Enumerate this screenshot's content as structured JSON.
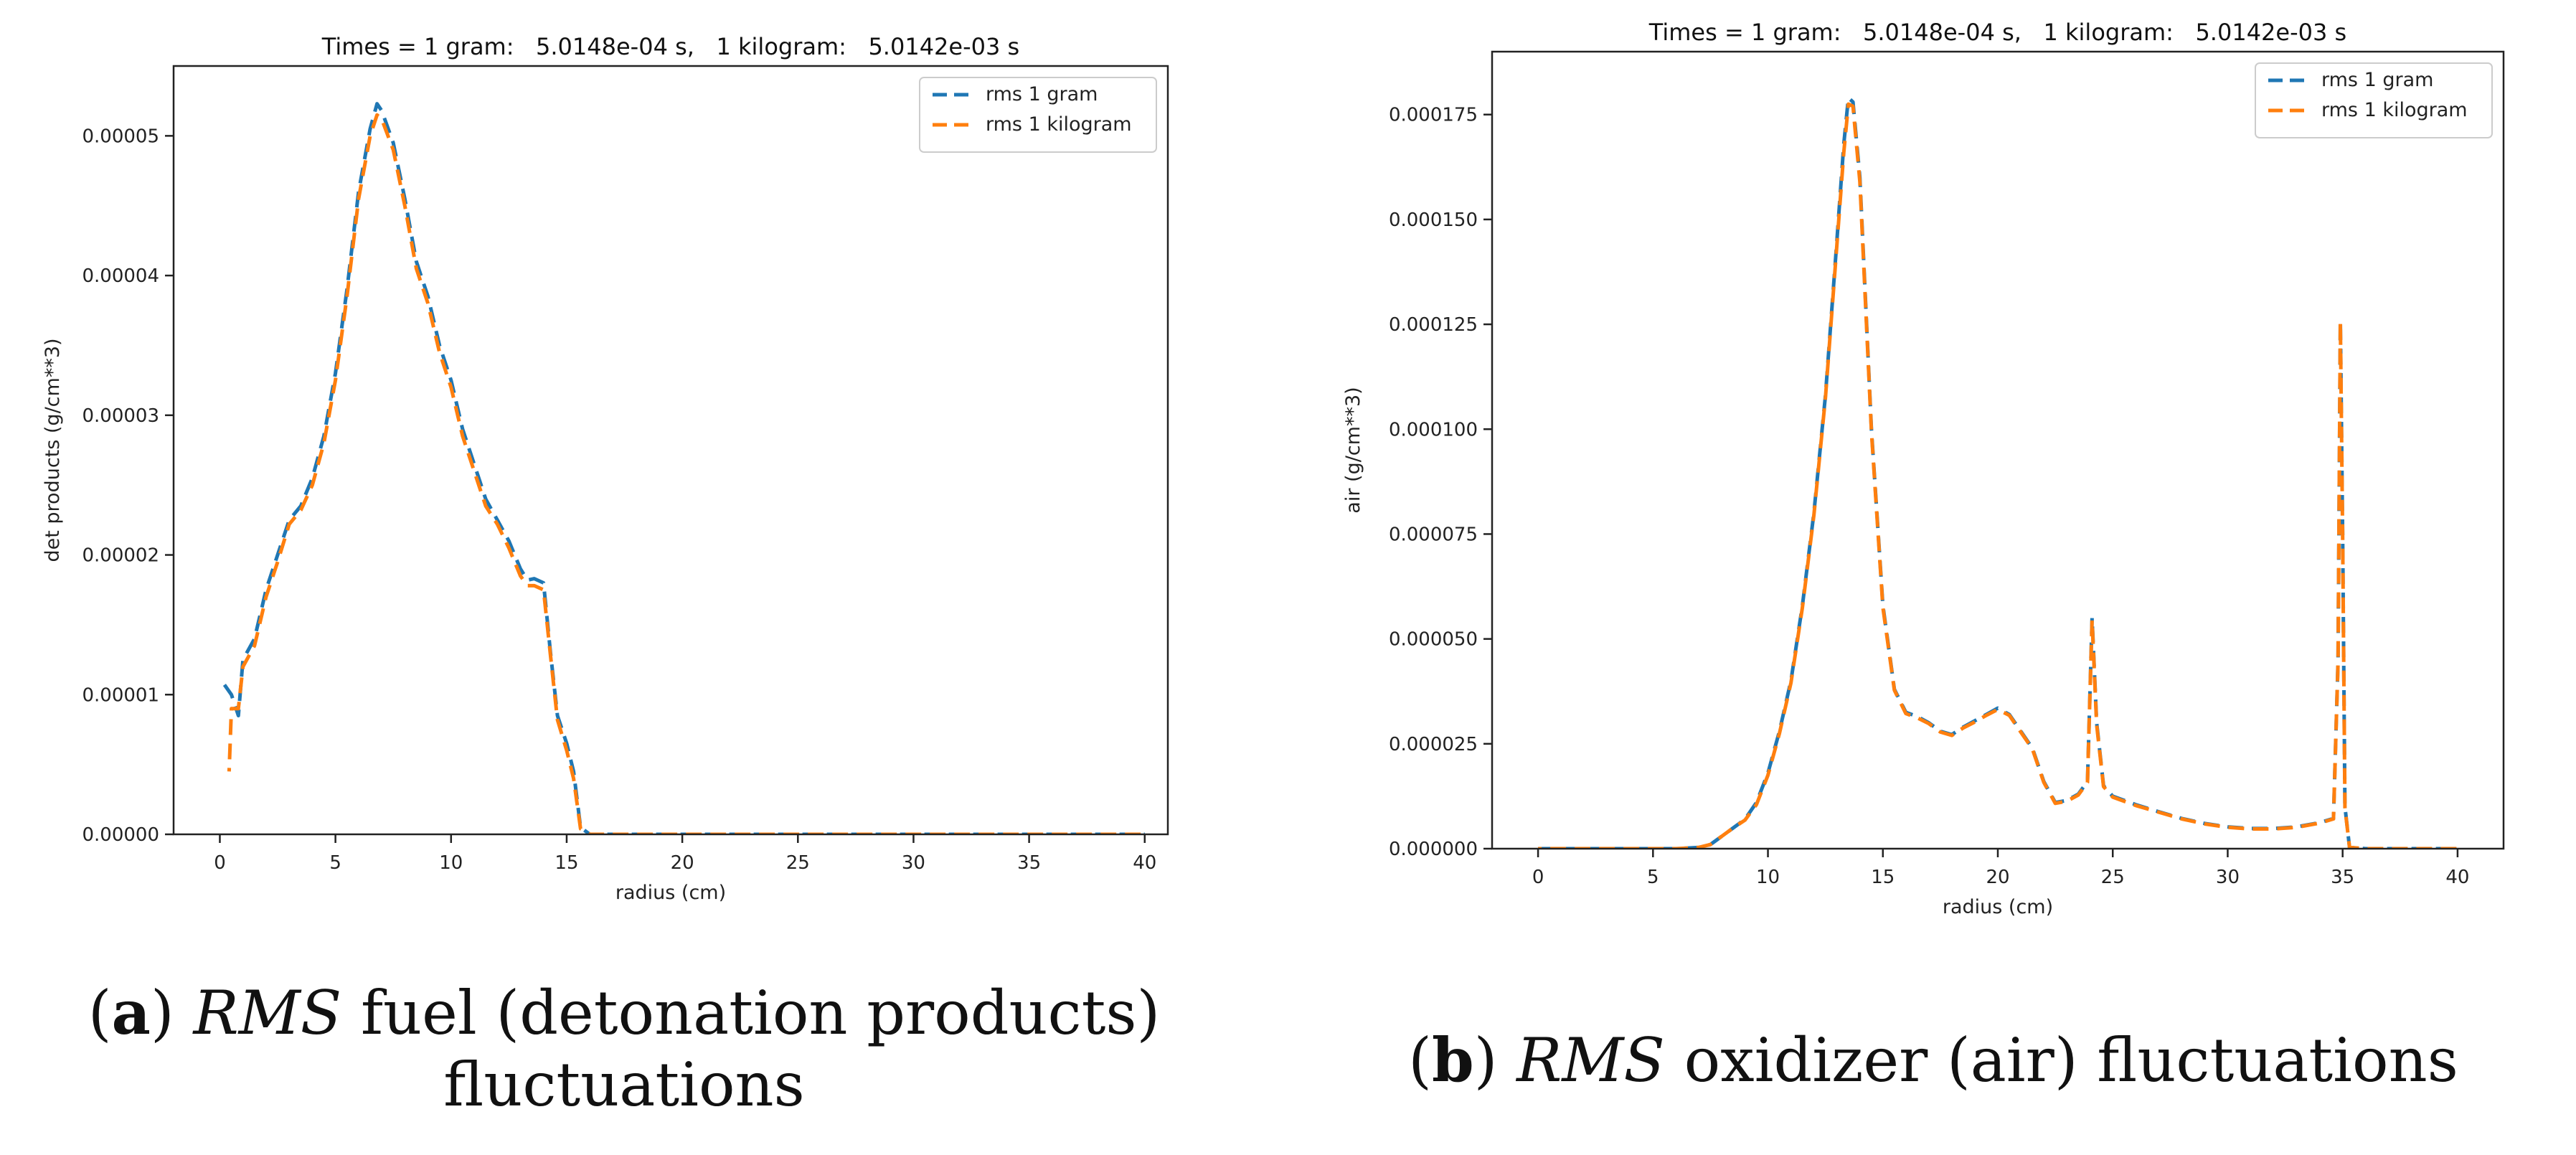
{
  "chart_data": [
    {
      "type": "line",
      "title": "Times = 1 gram:   5.0148e-04 s,   1 kilogram:   5.0142e-03 s",
      "xlabel": "radius (cm)",
      "ylabel": "det products (g/cm**3)",
      "xlim": [
        -2,
        41
      ],
      "ylim": [
        0,
        5.5e-05
      ],
      "xticks": [
        "0",
        "5",
        "10",
        "15",
        "20",
        "25",
        "30",
        "35",
        "40"
      ],
      "xtick_values": [
        0,
        5,
        10,
        15,
        20,
        25,
        30,
        35,
        40
      ],
      "yticks": [
        "0.00000",
        "0.00001",
        "0.00002",
        "0.00003",
        "0.00004",
        "0.00005"
      ],
      "ytick_values": [
        0,
        1e-05,
        2e-05,
        3e-05,
        4e-05,
        5e-05
      ],
      "grid": false,
      "legend_position": "top-right",
      "series": [
        {
          "name": "rms 1 gram",
          "color": "#1f77b4",
          "x": [
            0.2,
            0.5,
            0.8,
            1,
            1.5,
            2,
            2.5,
            3,
            3.5,
            4,
            4.5,
            5,
            5.5,
            6,
            6.5,
            6.8,
            7,
            7.5,
            8,
            8.5,
            9,
            9.5,
            10,
            10.5,
            11,
            11.5,
            12,
            12.5,
            13,
            13.3,
            13.6,
            14,
            14.3,
            14.6,
            15,
            15.3,
            15.6,
            16,
            20,
            25,
            30,
            35,
            40
          ],
          "y": [
            1.07e-05,
            1e-05,
            8.5e-06,
            1.25e-05,
            1.4e-05,
            1.75e-05,
            2e-05,
            2.25e-05,
            2.35e-05,
            2.55e-05,
            2.85e-05,
            3.3e-05,
            3.9e-05,
            4.6e-05,
            5.05e-05,
            5.23e-05,
            5.18e-05,
            4.95e-05,
            4.55e-05,
            4.1e-05,
            3.85e-05,
            3.5e-05,
            3.25e-05,
            2.9e-05,
            2.65e-05,
            2.4e-05,
            2.25e-05,
            2.1e-05,
            1.9e-05,
            1.82e-05,
            1.83e-05,
            1.8e-05,
            1.3e-05,
            8.5e-06,
            6.5e-06,
            4.5e-06,
            5e-07,
            0,
            0,
            0,
            0,
            0,
            0
          ]
        },
        {
          "name": "rms 1 kilogram",
          "color": "#ff7f0e",
          "x": [
            0.4,
            0.5,
            0.8,
            1,
            1.5,
            2,
            2.5,
            3,
            3.5,
            4,
            4.5,
            5,
            5.5,
            6,
            6.5,
            6.8,
            7,
            7.5,
            8,
            8.5,
            9,
            9.5,
            10,
            10.5,
            11,
            11.5,
            12,
            12.5,
            13,
            13.3,
            13.6,
            14,
            14.3,
            14.6,
            15,
            15.3,
            15.6,
            16,
            20,
            25,
            30,
            35,
            40
          ],
          "y": [
            4.5e-06,
            9e-06,
            9e-06,
            1.2e-05,
            1.35e-05,
            1.7e-05,
            1.95e-05,
            2.22e-05,
            2.32e-05,
            2.5e-05,
            2.8e-05,
            3.25e-05,
            3.85e-05,
            4.55e-05,
            5e-05,
            5.15e-05,
            5.12e-05,
            4.9e-05,
            4.5e-05,
            4.05e-05,
            3.8e-05,
            3.45e-05,
            3.2e-05,
            2.85e-05,
            2.6e-05,
            2.35e-05,
            2.22e-05,
            2.05e-05,
            1.85e-05,
            1.78e-05,
            1.78e-05,
            1.75e-05,
            1.28e-05,
            8.2e-06,
            6e-06,
            4e-06,
            4e-07,
            0,
            0,
            0,
            0,
            0,
            0
          ]
        }
      ]
    },
    {
      "type": "line",
      "title": "Times = 1 gram:   5.0148e-04 s,   1 kilogram:   5.0142e-03 s",
      "xlabel": "radius (cm)",
      "ylabel": "air (g/cm**3)",
      "xlim": [
        -2,
        42
      ],
      "ylim": [
        0,
        0.00019
      ],
      "xticks": [
        "0",
        "5",
        "10",
        "15",
        "20",
        "25",
        "30",
        "35",
        "40"
      ],
      "xtick_values": [
        0,
        5,
        10,
        15,
        20,
        25,
        30,
        35,
        40
      ],
      "yticks": [
        "0.000000",
        "0.000025",
        "0.000050",
        "0.000075",
        "0.000100",
        "0.000125",
        "0.000150",
        "0.000175"
      ],
      "ytick_values": [
        0,
        2.5e-05,
        5e-05,
        7.5e-05,
        0.0001,
        0.000125,
        0.00015,
        0.000175
      ],
      "grid": false,
      "legend_position": "top-right",
      "series": [
        {
          "name": "rms 1 gram",
          "color": "#1f77b4",
          "x": [
            0,
            2,
            4,
            6,
            7,
            7.5,
            8,
            8.5,
            9,
            9.5,
            10,
            10.5,
            11,
            11.5,
            12,
            12.5,
            13,
            13.3,
            13.5,
            13.7,
            14,
            14.5,
            15,
            15.5,
            16,
            16.5,
            17,
            17.5,
            18,
            18.5,
            19,
            19.5,
            20,
            20.5,
            21,
            21.5,
            22,
            22.5,
            23,
            23.5,
            23.9,
            24.1,
            24.3,
            24.6,
            25,
            26,
            27,
            28,
            29,
            30,
            31,
            32,
            33,
            34,
            34.6,
            34.8,
            34.9,
            35,
            35.1,
            35.3,
            36,
            38,
            40
          ],
          "y": [
            0,
            0,
            0,
            0,
            3e-07,
            1e-06,
            3e-06,
            5e-06,
            7e-06,
            1.1e-05,
            1.8e-05,
            2.8e-05,
            4e-05,
            5.8e-05,
            8e-05,
            0.000108,
            0.000145,
            0.000168,
            0.000179,
            0.000178,
            0.00016,
            0.0001,
            5.8e-05,
            3.8e-05,
            3.25e-05,
            3.15e-05,
            3e-05,
            2.8e-05,
            2.72e-05,
            2.9e-05,
            3.05e-05,
            3.2e-05,
            3.35e-05,
            3.2e-05,
            2.8e-05,
            2.4e-05,
            1.6e-05,
            1.1e-05,
            1.15e-05,
            1.3e-05,
            1.6e-05,
            5.5e-05,
            3e-05,
            1.5e-05,
            1.25e-05,
            1.05e-05,
            8.8e-06,
            7.2e-06,
            6e-06,
            5.2e-06,
            4.8e-06,
            4.8e-06,
            5.2e-06,
            6.2e-06,
            7.2e-06,
            4.5e-05,
            0.000126,
            7.5e-05,
            1e-05,
            3e-07,
            0,
            0,
            0
          ]
        },
        {
          "name": "rms 1 kilogram",
          "color": "#ff7f0e",
          "x": [
            0,
            2,
            4,
            6,
            7,
            7.5,
            8,
            8.5,
            9,
            9.5,
            10,
            10.5,
            11,
            11.5,
            12,
            12.5,
            13,
            13.3,
            13.5,
            13.7,
            14,
            14.5,
            15,
            15.5,
            16,
            16.5,
            17,
            17.5,
            18,
            18.5,
            19,
            19.5,
            20,
            20.5,
            21,
            21.5,
            22,
            22.5,
            23,
            23.5,
            23.9,
            24.1,
            24.3,
            24.6,
            25,
            26,
            27,
            28,
            29,
            30,
            31,
            32,
            33,
            34,
            34.6,
            34.8,
            34.9,
            35,
            35.1,
            35.3,
            36,
            38,
            40
          ],
          "y": [
            0,
            0,
            0,
            0,
            3e-07,
            1e-06,
            3e-06,
            5e-06,
            6.8e-06,
            1.05e-05,
            1.75e-05,
            2.75e-05,
            3.95e-05,
            5.75e-05,
            7.95e-05,
            0.0001075,
            0.000144,
            0.000166,
            0.0001775,
            0.000177,
            0.000159,
            9.95e-05,
            5.75e-05,
            3.78e-05,
            3.22e-05,
            3.12e-05,
            2.98e-05,
            2.78e-05,
            2.7e-05,
            2.88e-05,
            3.02e-05,
            3.18e-05,
            3.32e-05,
            3.18e-05,
            2.78e-05,
            2.38e-05,
            1.58e-05,
            1.08e-05,
            1.13e-05,
            1.28e-05,
            1.58e-05,
            5.45e-05,
            2.95e-05,
            1.48e-05,
            1.23e-05,
            1.03e-05,
            8.7e-06,
            7.1e-06,
            5.9e-06,
            5.1e-06,
            4.7e-06,
            4.7e-06,
            5.1e-06,
            6.1e-06,
            7.1e-06,
            4.45e-05,
            0.0001255,
            7.45e-05,
            9.8e-06,
            3e-07,
            0,
            0,
            0
          ]
        }
      ]
    }
  ],
  "captions": [
    {
      "letter": "a",
      "open": "(",
      "close": ") ",
      "italic": "RMS",
      "rest": " fuel (detonation products)",
      "line2": "fluctuations"
    },
    {
      "letter": "b",
      "open": "(",
      "close": ") ",
      "italic": "RMS",
      "rest": " oxidizer (air) fluctuations"
    }
  ]
}
